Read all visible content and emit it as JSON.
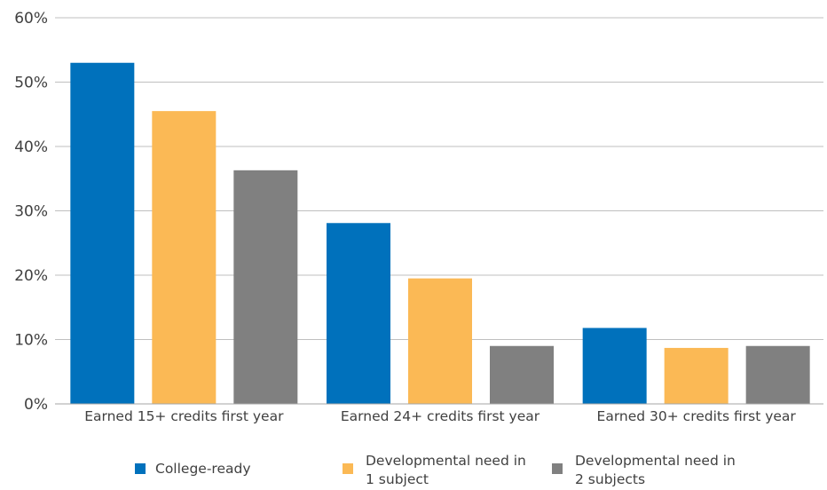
{
  "chart_data": {
    "type": "bar",
    "categories": [
      "Earned 15+ credits first year",
      "Earned 24+ credits first year",
      "Earned 30+ credits first year"
    ],
    "series": [
      {
        "name": "College-ready",
        "name_lines": [
          "College-ready"
        ],
        "color": "#0071bc",
        "values": [
          0.53,
          0.281,
          0.118
        ]
      },
      {
        "name": "Developmental need in 1 subject",
        "name_lines": [
          "Developmental need in",
          "1 subject"
        ],
        "color": "#fbb955",
        "values": [
          0.455,
          0.195,
          0.087
        ]
      },
      {
        "name": "Developmental need in 2 subjects",
        "name_lines": [
          "Developmental need in",
          "2 subjects"
        ],
        "color": "#808080",
        "values": [
          0.363,
          0.09,
          0.09
        ]
      }
    ],
    "ylim": [
      0,
      0.6
    ],
    "yticks": [
      0,
      0.1,
      0.2,
      0.3,
      0.4,
      0.5,
      0.6
    ],
    "ytick_labels": [
      "0%",
      "10%",
      "20%",
      "30%",
      "40%",
      "50%",
      "60%"
    ],
    "grid": true,
    "legend_position": "bottom",
    "title": "",
    "xlabel": "",
    "ylabel": ""
  }
}
